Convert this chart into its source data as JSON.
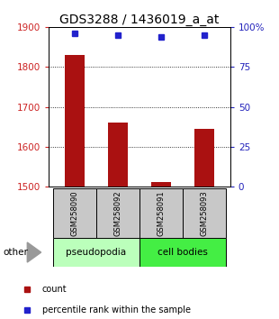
{
  "title": "GDS3288 / 1436019_a_at",
  "samples": [
    "GSM258090",
    "GSM258092",
    "GSM258091",
    "GSM258093"
  ],
  "counts": [
    1830,
    1660,
    1512,
    1645
  ],
  "percentiles": [
    96,
    95,
    94,
    95
  ],
  "ylim_left": [
    1500,
    1900
  ],
  "ylim_right": [
    0,
    100
  ],
  "yticks_left": [
    1500,
    1600,
    1700,
    1800,
    1900
  ],
  "yticks_right": [
    0,
    25,
    50,
    75,
    100
  ],
  "ytick_labels_right": [
    "0",
    "25",
    "50",
    "75",
    "100%"
  ],
  "bar_color": "#aa1111",
  "dot_color": "#2222cc",
  "bar_width": 0.45,
  "groups": [
    {
      "label": "pseudopodia",
      "color": "#bbffbb"
    },
    {
      "label": "cell bodies",
      "color": "#44ee44"
    }
  ],
  "other_label": "other",
  "legend_count_label": "count",
  "legend_pct_label": "percentile rank within the sample",
  "background_color": "#ffffff",
  "tick_label_color_left": "#cc2222",
  "tick_label_color_right": "#2222bb",
  "grid_color": "#000000",
  "sample_box_color": "#c8c8c8",
  "title_fontsize": 10
}
